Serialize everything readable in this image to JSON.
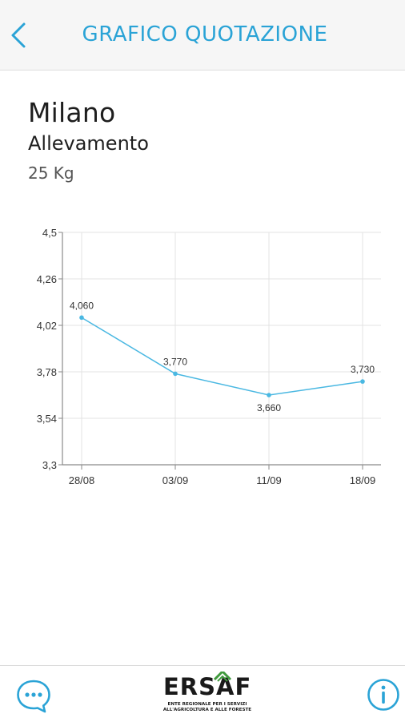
{
  "header": {
    "title": "GRAFICO QUOTAZIONE",
    "back_icon": "chevron-left-icon"
  },
  "summary": {
    "market": "Milano",
    "category": "Allevamento",
    "unit": "25 Kg"
  },
  "chart_data": {
    "type": "line",
    "x": [
      "28/08",
      "03/09",
      "11/09",
      "18/09"
    ],
    "series": [
      {
        "values": [
          4.06,
          3.77,
          3.66,
          3.73
        ],
        "labels": [
          "4,060",
          "3,770",
          "3,660",
          "3,730"
        ]
      }
    ],
    "ylim": [
      3.3,
      4.5
    ],
    "yticks": [
      3.3,
      3.54,
      3.78,
      4.02,
      4.26,
      4.5
    ],
    "ytick_labels": [
      "3,3",
      "3,54",
      "3,78",
      "4,02",
      "4,26",
      "4,5"
    ],
    "grid": true,
    "colors": {
      "line": "#4ab8e2",
      "grid": "#e3e3e3",
      "axis": "#8a8a8a"
    }
  },
  "footer": {
    "chat_icon": "chat-bubble-icon",
    "info_icon": "info-icon",
    "logo_word": "ERSAF",
    "logo_sub_line1": "ENTE REGIONALE PER I SERVIZI",
    "logo_sub_line2": "ALL'AGRICOLTURA E ALLE FORESTE"
  },
  "colors": {
    "accent": "#2aa3d6",
    "logo_green": "#3f9a3c"
  }
}
